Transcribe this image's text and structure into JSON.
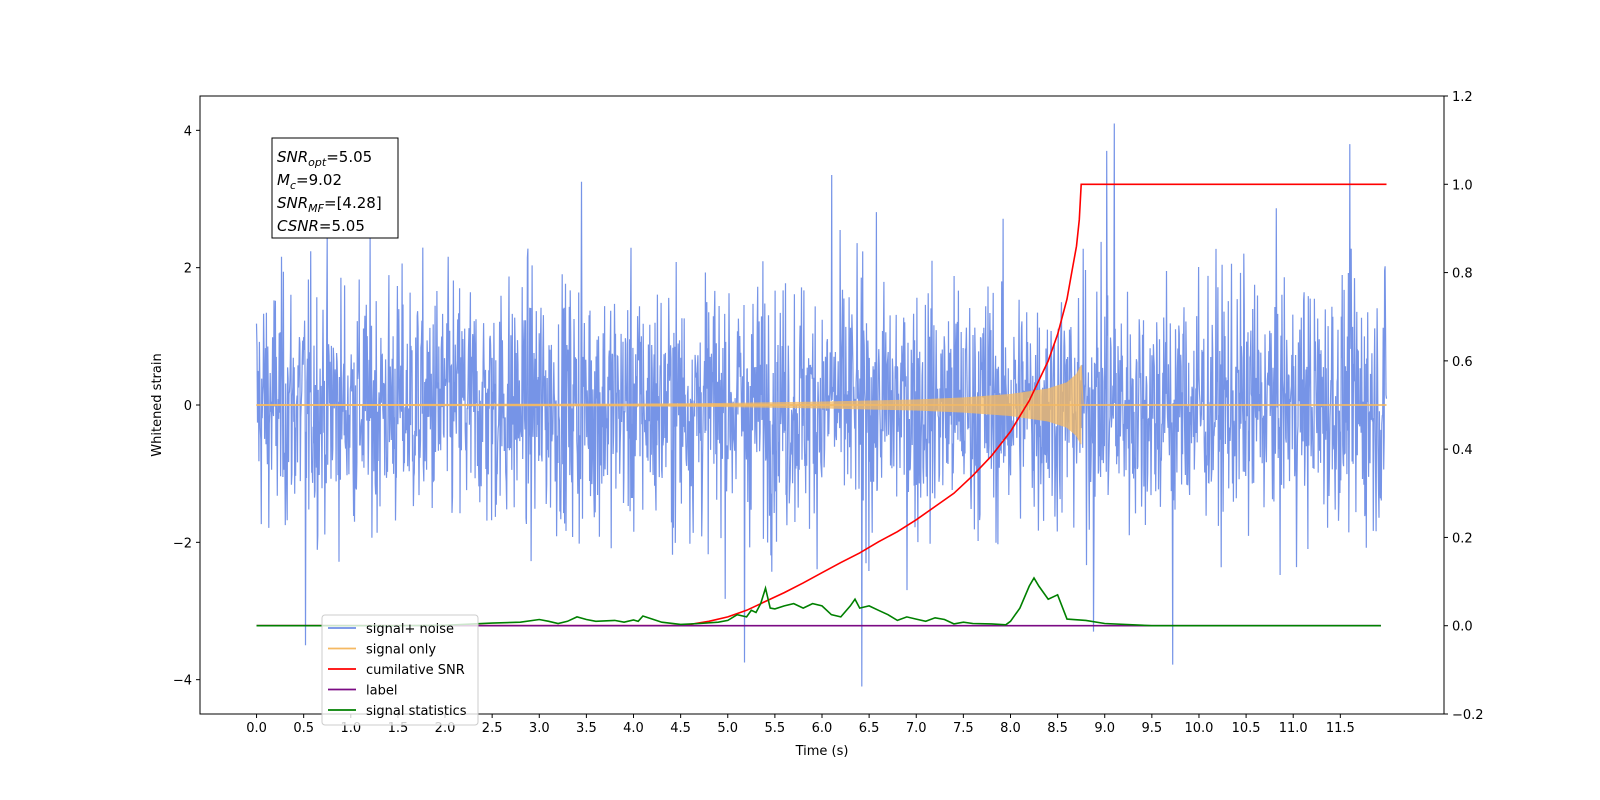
{
  "chart_data": {
    "type": "line",
    "title": "",
    "xlabel": "Time (s)",
    "ylabel": "Whitened strain",
    "y2label": "",
    "xlim": [
      -0.6,
      12.6
    ],
    "ylim": [
      -4.5,
      4.5
    ],
    "y2lim": [
      -0.2,
      1.2
    ],
    "x_ticks": [
      "0.0",
      "0.5",
      "1.0",
      "1.5",
      "2.0",
      "2.5",
      "3.0",
      "3.5",
      "4.0",
      "4.5",
      "5.0",
      "5.5",
      "6.0",
      "6.5",
      "7.0",
      "7.5",
      "8.0",
      "8.5",
      "9.0",
      "9.5",
      "10.0",
      "10.5",
      "11.0",
      "11.5"
    ],
    "y_ticks": [
      "−4",
      "−2",
      "0",
      "2",
      "4"
    ],
    "y2_ticks": [
      "−0.2",
      "0.0",
      "0.2",
      "0.4",
      "0.6",
      "0.8",
      "1.0",
      "1.2"
    ],
    "grid": false,
    "legend_position": "lower-left",
    "series": [
      {
        "name": "signal+ noise",
        "axis": "left",
        "color": "#6f8ee6",
        "kind": "noise",
        "x_range": [
          0.0,
          11.99
        ],
        "amplitude": 0.9,
        "peaks": [
          [
            0.52,
            -3.5
          ],
          [
            5.18,
            -3.75
          ],
          [
            6.42,
            -4.1
          ],
          [
            9.72,
            -3.78
          ],
          [
            9.1,
            4.1
          ],
          [
            9.02,
            3.7
          ],
          [
            11.6,
            3.8
          ],
          [
            3.45,
            3.25
          ],
          [
            6.1,
            3.35
          ],
          [
            8.88,
            -3.3
          ]
        ]
      },
      {
        "name": "signal only",
        "axis": "left",
        "color": "#f5b961",
        "kind": "chirp",
        "x_range": [
          0.0,
          8.75
        ],
        "amplitude_points": [
          [
            0.0,
            0.01
          ],
          [
            4.0,
            0.02
          ],
          [
            5.0,
            0.03
          ],
          [
            6.0,
            0.05
          ],
          [
            7.0,
            0.08
          ],
          [
            7.5,
            0.11
          ],
          [
            8.0,
            0.16
          ],
          [
            8.4,
            0.24
          ],
          [
            8.6,
            0.33
          ],
          [
            8.7,
            0.45
          ],
          [
            8.75,
            0.58
          ]
        ]
      },
      {
        "name": "cumilative SNR",
        "axis": "right",
        "color": "#ff0000",
        "x": [
          0.0,
          4.5,
          4.6,
          4.8,
          5.0,
          5.2,
          5.4,
          5.6,
          5.8,
          6.0,
          6.2,
          6.4,
          6.6,
          6.8,
          7.0,
          7.2,
          7.4,
          7.6,
          7.8,
          8.0,
          8.2,
          8.4,
          8.5,
          8.6,
          8.65,
          8.7,
          8.73,
          8.75,
          8.76,
          11.99
        ],
        "y": [
          0.0,
          0.0,
          0.003,
          0.01,
          0.02,
          0.035,
          0.055,
          0.075,
          0.097,
          0.12,
          0.143,
          0.165,
          0.19,
          0.213,
          0.24,
          0.27,
          0.3,
          0.34,
          0.385,
          0.44,
          0.51,
          0.6,
          0.66,
          0.74,
          0.8,
          0.86,
          0.92,
          1.0,
          1.0,
          1.0
        ]
      },
      {
        "name": "label",
        "axis": "right",
        "color": "#7b0b84",
        "x": [
          0.0,
          11.93
        ],
        "y": [
          0.0,
          0.0
        ]
      },
      {
        "name": "signal statistics",
        "axis": "right",
        "color": "#008000",
        "x": [
          0.0,
          1.5,
          2.0,
          2.3,
          2.5,
          2.8,
          3.0,
          3.1,
          3.2,
          3.3,
          3.4,
          3.5,
          3.6,
          3.8,
          3.9,
          4.0,
          4.05,
          4.1,
          4.2,
          4.3,
          4.5,
          4.7,
          4.9,
          5.0,
          5.1,
          5.2,
          5.25,
          5.3,
          5.35,
          5.4,
          5.45,
          5.5,
          5.6,
          5.7,
          5.8,
          5.9,
          6.0,
          6.1,
          6.2,
          6.3,
          6.35,
          6.4,
          6.5,
          6.6,
          6.7,
          6.8,
          6.9,
          7.0,
          7.1,
          7.2,
          7.3,
          7.4,
          7.5,
          7.6,
          7.8,
          7.95,
          8.0,
          8.1,
          8.2,
          8.25,
          8.3,
          8.4,
          8.5,
          8.6,
          8.8,
          9.0,
          9.5,
          11.93
        ],
        "y": [
          0.0,
          0.0,
          0.001,
          0.004,
          0.006,
          0.008,
          0.014,
          0.01,
          0.005,
          0.01,
          0.02,
          0.014,
          0.01,
          0.012,
          0.008,
          0.013,
          0.01,
          0.022,
          0.015,
          0.008,
          0.003,
          0.005,
          0.008,
          0.012,
          0.025,
          0.02,
          0.035,
          0.03,
          0.05,
          0.085,
          0.04,
          0.038,
          0.045,
          0.05,
          0.04,
          0.05,
          0.045,
          0.025,
          0.02,
          0.045,
          0.06,
          0.04,
          0.045,
          0.035,
          0.025,
          0.012,
          0.02,
          0.015,
          0.01,
          0.018,
          0.014,
          0.004,
          0.008,
          0.005,
          0.004,
          0.002,
          0.01,
          0.04,
          0.09,
          0.108,
          0.09,
          0.06,
          0.07,
          0.015,
          0.012,
          0.005,
          0.0,
          0.0
        ]
      }
    ],
    "annotation": {
      "lines": [
        {
          "sym": "SNR",
          "sub": "opt",
          "val": "=5.05"
        },
        {
          "sym": "M",
          "sub": "c",
          "val": "=9.02"
        },
        {
          "sym": "SNR",
          "sub": "MF",
          "val": "=[4.28]"
        },
        {
          "sym": "CSNR",
          "sub": "",
          "val": "=5.05"
        }
      ]
    }
  }
}
